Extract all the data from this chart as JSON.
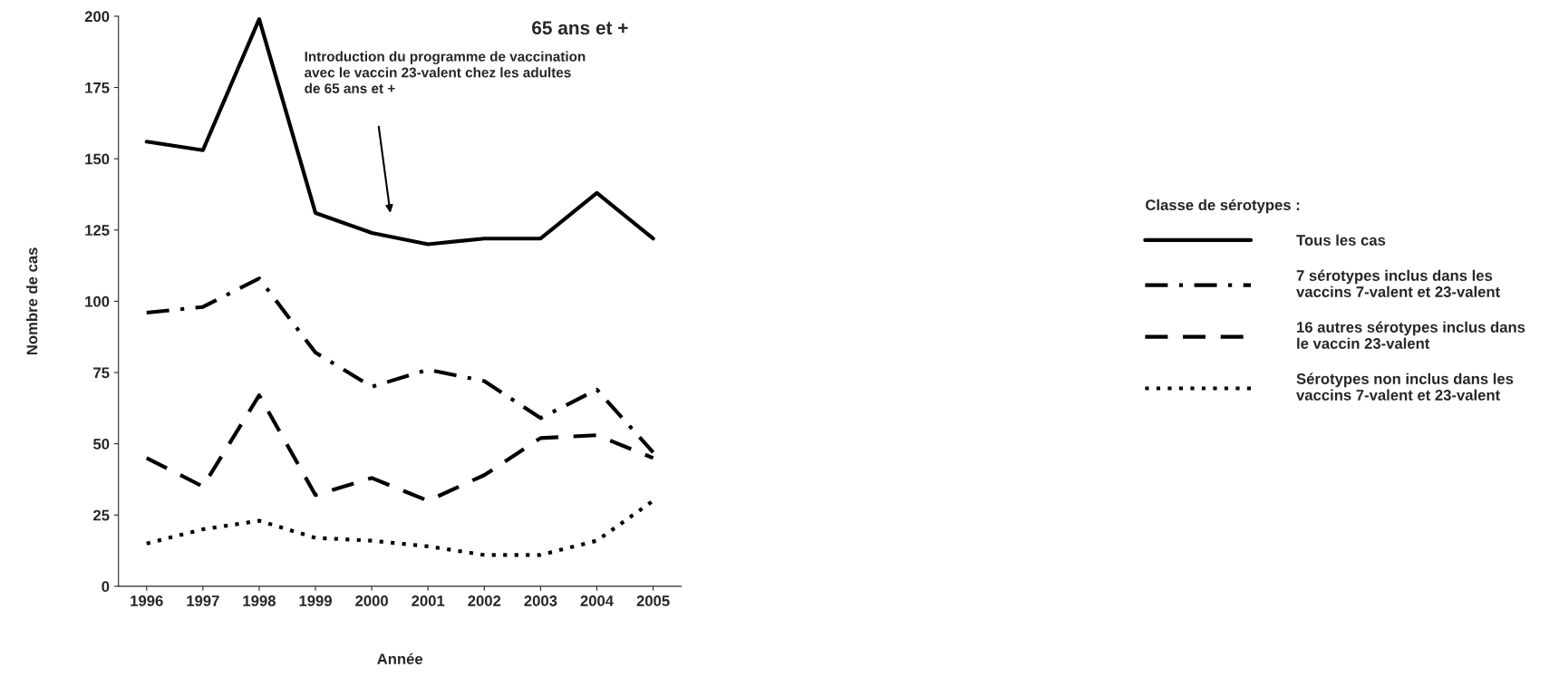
{
  "chart_data": {
    "type": "line",
    "title": "65 ans et +",
    "xlabel": "Année",
    "ylabel": "Nombre de cas",
    "legend_title": "Classe de sérotypes :",
    "categories": [
      "1996",
      "1997",
      "1998",
      "1999",
      "2000",
      "2001",
      "2002",
      "2003",
      "2004",
      "2005"
    ],
    "series": [
      {
        "name": "Tous les cas",
        "color": "#000000",
        "line_style": "solid",
        "values": [
          156,
          153,
          199,
          131,
          124,
          120,
          122,
          122,
          138,
          122
        ]
      },
      {
        "name": "7 sérotypes inclus dans les\nvaccins 7-valent et 23-valent",
        "color": "#000000",
        "line_style": "dashdot",
        "values": [
          96,
          98,
          108,
          82,
          70,
          76,
          72,
          59,
          69,
          47
        ]
      },
      {
        "name": "16 autres sérotypes inclus dans\nle vaccin 23-valent",
        "color": "#000000",
        "line_style": "dashed",
        "values": [
          45,
          35,
          67,
          32,
          38,
          30,
          39,
          52,
          53,
          45
        ]
      },
      {
        "name": "Sérotypes non inclus dans les\nvaccins 7-valent et 23-valent",
        "color": "#000000",
        "line_style": "dotted",
        "values": [
          15,
          20,
          23,
          17,
          16,
          14,
          11,
          11,
          16,
          30
        ]
      }
    ],
    "annotations": [
      "Introduction du programme de vaccination\navec le vaccin 23-valent chez les adultes\nde 65 ans et +"
    ],
    "ylim": [
      0,
      200
    ],
    "yticks": [
      0,
      25,
      50,
      75,
      100,
      125,
      150,
      175,
      200
    ],
    "grid": false,
    "legend": "right",
    "marker": "none"
  }
}
